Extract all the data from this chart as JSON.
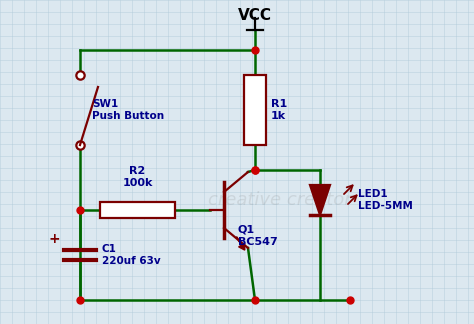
{
  "bg_color": "#dce8f0",
  "wire_color": "#006600",
  "comp_color": "#7B0000",
  "label_color": "#00008B",
  "grid_color": "#aec8d8",
  "vcc_label": "VCC",
  "sw1_label1": "SW1",
  "sw1_label2": "Push Button",
  "r1_label1": "R1",
  "r1_label2": "1k",
  "r2_label1": "R2",
  "r2_label2": "100k",
  "q1_label1": "Q1",
  "q1_label2": "BC547",
  "led_label1": "LED1",
  "led_label2": "LED-5MM",
  "c1_label1": "C1",
  "c1_label2": "220uf 63v",
  "watermark": "creative creator",
  "lw": 1.8,
  "comp_lw": 1.6
}
